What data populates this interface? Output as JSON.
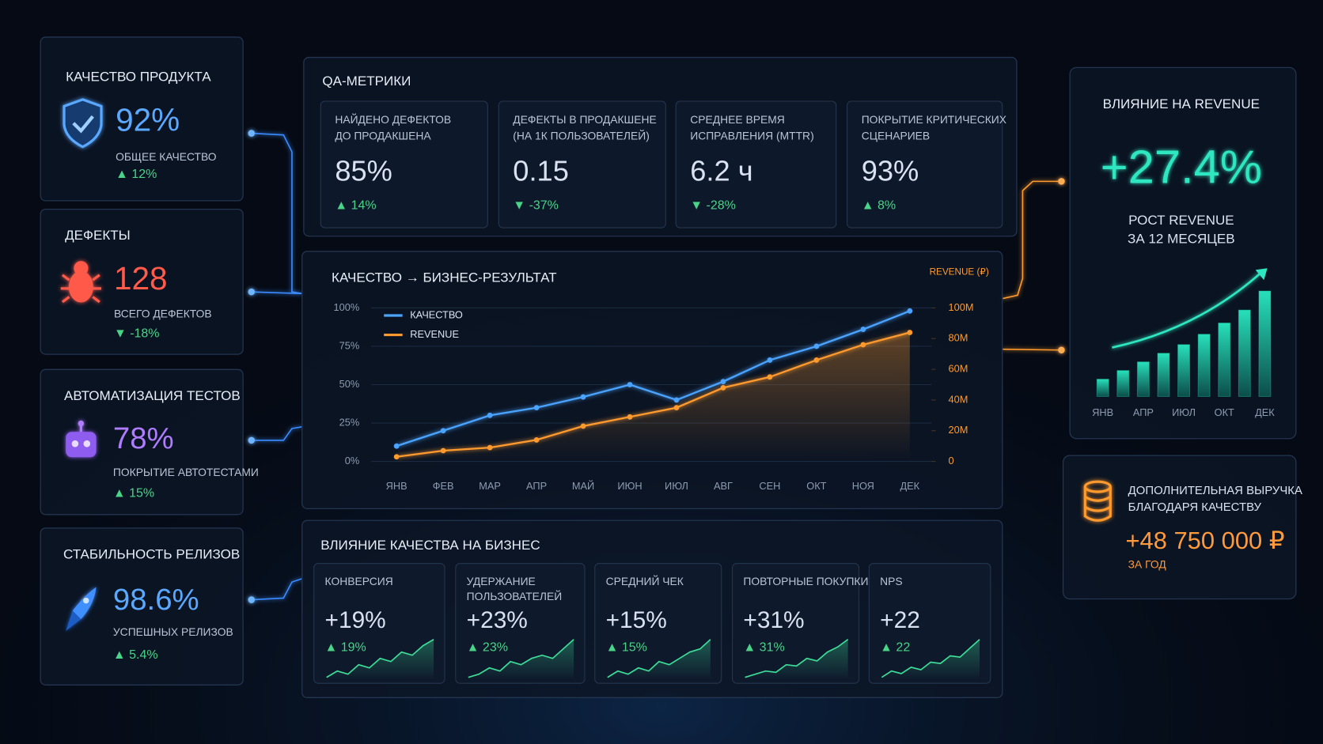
{
  "left_panels": [
    {
      "title": "КАЧЕСТВО ПРОДУКТА",
      "value": "92%",
      "label": "ОБЩЕЕ КАЧЕСТВО",
      "delta": "▲ 12%"
    },
    {
      "title": "ДЕФЕКТЫ",
      "value": "128",
      "label": "ВСЕГО ДЕФЕКТОВ",
      "delta": "▼ -18%"
    },
    {
      "title": "АВТОМАТИЗАЦИЯ ТЕСТОВ",
      "value": "78%",
      "label": "ПОКРЫТИЕ АВТОТЕСТАМИ",
      "delta": "▲ 15%"
    },
    {
      "title": "СТАБИЛЬНОСТЬ РЕЛИЗОВ",
      "value": "98.6%",
      "label": "УСПЕШНЫХ РЕЛИЗОВ",
      "delta": "▲ 5.4%"
    }
  ],
  "qa_metrics": {
    "title": "QA-МЕТРИКИ",
    "cards": [
      {
        "label": [
          "НАЙДЕНО ДЕФЕКТОВ",
          "ДО ПРОДАКШЕНА"
        ],
        "value": "85%",
        "delta": "▲ 14%"
      },
      {
        "label": [
          "ДЕФЕКТЫ В ПРОДАКШЕНЕ",
          "(НА 1К ПОЛЬЗОВАТЕЛЕЙ)"
        ],
        "value": "0.15",
        "delta": "▼ -37%"
      },
      {
        "label": [
          "СРЕДНЕЕ ВРЕМЯ",
          "ИСПРАВЛЕНИЯ (MTTR)"
        ],
        "value": "6.2 ч",
        "delta": "▼ -28%"
      },
      {
        "label": [
          "ПОКРЫТИЕ КРИТИЧЕСКИХ",
          "СЦЕНАРИЕВ"
        ],
        "value": "93%",
        "delta": "▲ 8%"
      }
    ]
  },
  "business_chart": {
    "type": "line",
    "title": "КАЧЕСТВО → БИЗНЕС-РЕЗУЛЬТАТ",
    "y2_label": "REVENUE (₽)",
    "categories": [
      "ЯНВ",
      "ФЕВ",
      "МАР",
      "АПР",
      "МАЙ",
      "ИЮН",
      "ИЮЛ",
      "АВГ",
      "СЕН",
      "ОКТ",
      "НОЯ",
      "ДЕК"
    ],
    "series": [
      {
        "name": "КАЧЕСТВО",
        "color": "#4aa3ff",
        "values": [
          10,
          20,
          30,
          35,
          42,
          50,
          40,
          52,
          66,
          75,
          86,
          98
        ]
      },
      {
        "name": "REVENUE",
        "color": "#ff9a2e",
        "axis": "y2",
        "values": [
          3000000,
          7000000,
          9000000,
          14000000,
          23000000,
          29000000,
          35000000,
          48000000,
          55000000,
          66000000,
          76000000,
          84000000
        ]
      }
    ],
    "ylim": [
      0,
      100
    ],
    "yticks": [
      {
        "value": 0,
        "label": "0%"
      },
      {
        "value": 25,
        "label": "25%"
      },
      {
        "value": 50,
        "label": "50%"
      },
      {
        "value": 75,
        "label": "75%"
      },
      {
        "value": 100,
        "label": "100%"
      }
    ],
    "y2lim": [
      0,
      100000000
    ],
    "y2ticks": [
      0,
      {
        "value": 20000000,
        "label": "20M"
      },
      {
        "value": 40000000,
        "label": "40M"
      },
      {
        "value": 60000000,
        "label": "60M"
      },
      {
        "value": 80000000,
        "label": "80M"
      },
      {
        "value": 100000000,
        "label": "100M"
      }
    ],
    "grid": true
  },
  "business_impact": {
    "title": "ВЛИЯНИЕ КАЧЕСТВА НА БИЗНЕС",
    "color": "#3ddc97",
    "cards": [
      {
        "label": [
          "КОНВЕРСИЯ"
        ],
        "value": "+19%",
        "delta": "▲ 19%",
        "trend": [
          2,
          3,
          2.5,
          4,
          3.5,
          5,
          4.5,
          6,
          5.5,
          7,
          8
        ]
      },
      {
        "label": [
          "УДЕРЖАНИЕ",
          "ПОЛЬЗОВАТЕЛЕЙ"
        ],
        "value": "+23%",
        "delta": "▲ 23%",
        "trend": [
          2,
          2.5,
          3.5,
          3,
          4.5,
          4,
          5,
          5.5,
          5,
          6.5,
          8
        ]
      },
      {
        "label": [
          "СРЕДНИЙ ЧЕК"
        ],
        "value": "+15%",
        "delta": "▲ 15%",
        "trend": [
          2,
          3,
          2.5,
          3.5,
          3,
          4.5,
          4,
          5,
          6,
          6.5,
          8
        ]
      },
      {
        "label": [
          "ПОВТОРНЫЕ ПОКУПКИ"
        ],
        "value": "+31%",
        "delta": "▲ 31%",
        "trend": [
          2,
          2.5,
          3,
          2.8,
          4,
          3.8,
          5,
          4.6,
          6,
          6.8,
          8
        ]
      },
      {
        "label": [
          "NPS"
        ],
        "value": "+22",
        "delta": "▲ 22",
        "trend": [
          2,
          3,
          2.6,
          3.6,
          3.2,
          4.4,
          4.2,
          5.4,
          5.2,
          6.6,
          8
        ]
      }
    ]
  },
  "revenue_panel": {
    "title": "ВЛИЯНИЕ НА REVENUE",
    "value": "+27.4%",
    "label": [
      "РОСТ REVENUE",
      "ЗА 12 МЕСЯЦЕВ"
    ],
    "chart": {
      "type": "bar",
      "categories": [
        "ЯНВ",
        null,
        "АПР",
        null,
        "ИЮЛ",
        null,
        "ОКТ",
        null,
        "ДЕК"
      ],
      "values": [
        20,
        30,
        40,
        50,
        60,
        72,
        85,
        100,
        122
      ],
      "color": "#1fc7a6"
    }
  },
  "extra_revenue": {
    "label": [
      "ДОПОЛНИТЕЛЬНАЯ ВЫРУЧКА",
      "БЛАГОДАРЯ КАЧЕСТВУ"
    ],
    "value": "+48 750 000 ₽",
    "sub": "ЗА ГОД"
  }
}
